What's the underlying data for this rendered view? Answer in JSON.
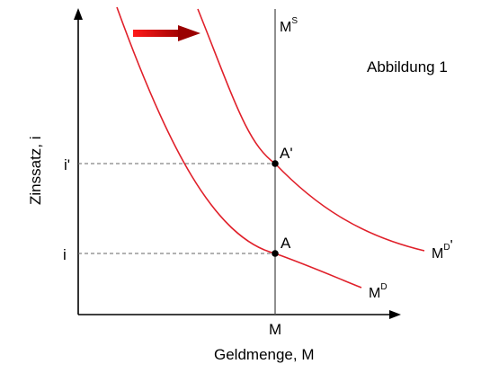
{
  "figure_label": "Abbildung 1",
  "y_axis_label": "Zinssatz, i",
  "x_axis_label": "Geldmenge, M",
  "x_tick_label": "M",
  "y_ticks": {
    "i_prime": "i'",
    "i": "i"
  },
  "supply_curve": {
    "base": "M",
    "sup": "S"
  },
  "demand_curve": {
    "base": "M",
    "sup": "D"
  },
  "shifted_demand_curve": {
    "base": "M",
    "sup": "D",
    "prime": "'"
  },
  "points": {
    "A": "A",
    "A_prime": "A'"
  },
  "colors": {
    "curve": "#e0202a",
    "arrow": "#cc0000",
    "axis": "#000000",
    "supply": "#555555",
    "guide": "#666666"
  }
}
